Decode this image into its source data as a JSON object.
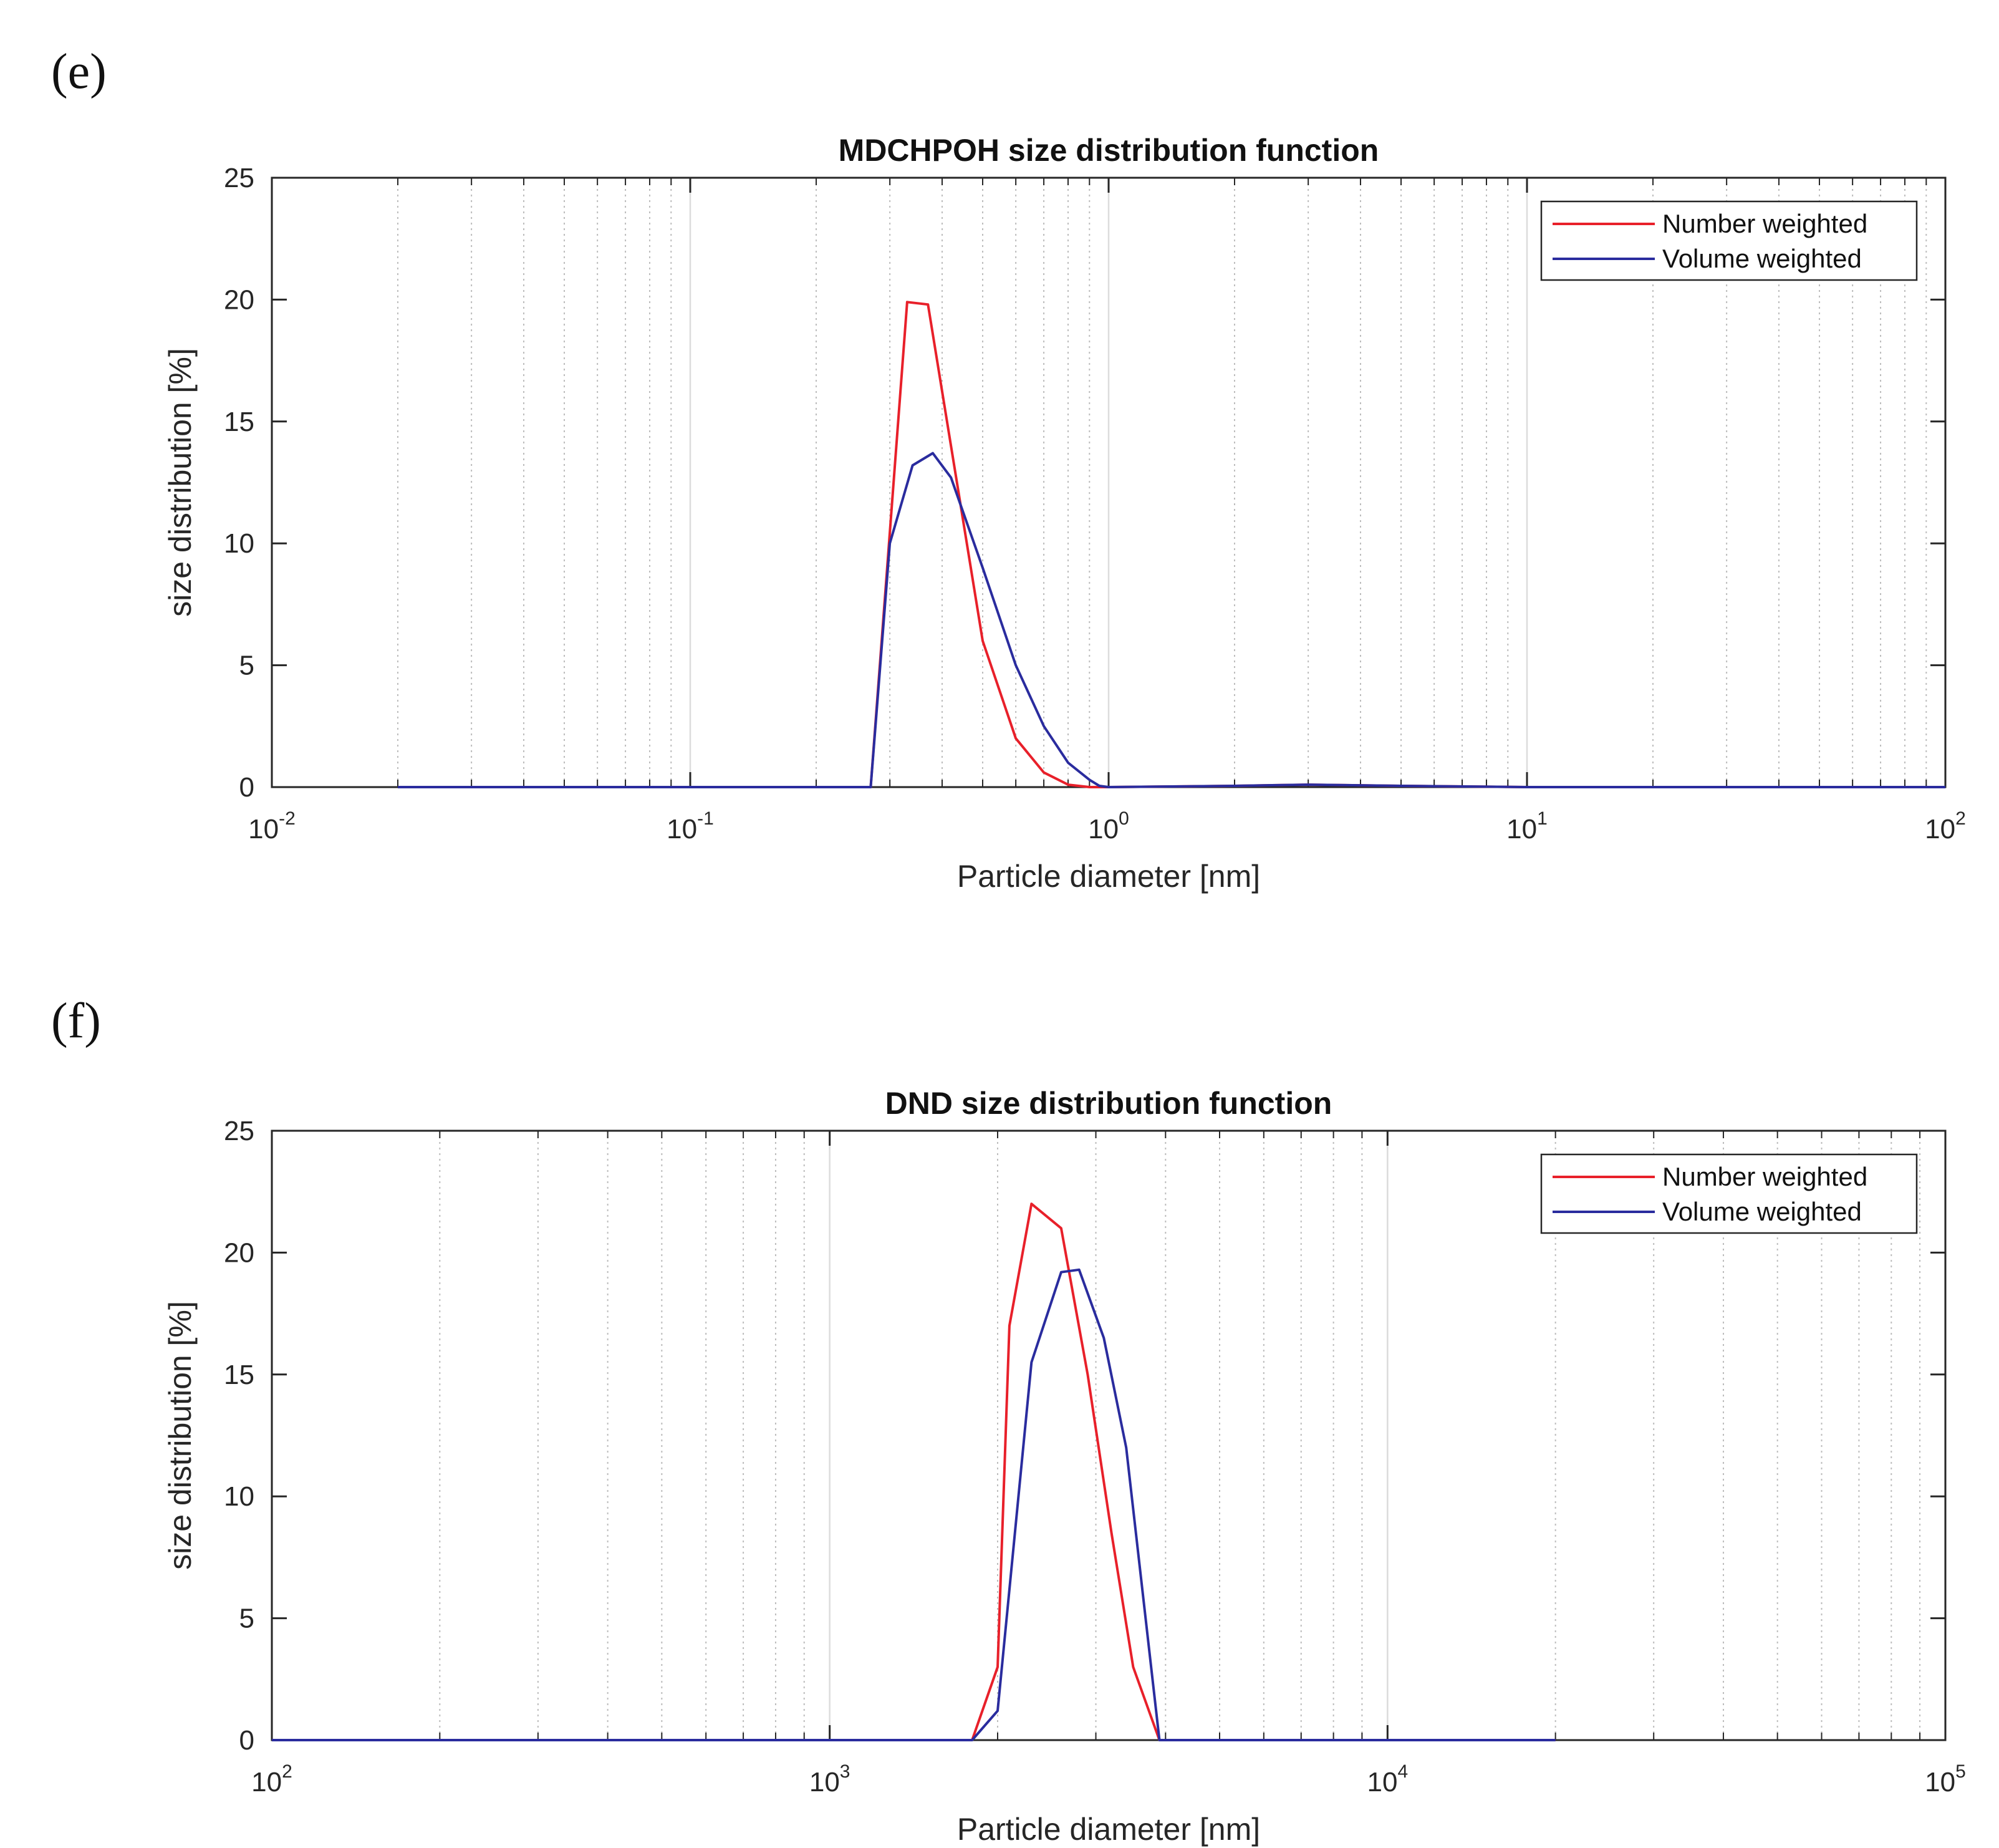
{
  "panels": [
    {
      "label": "(e)",
      "chart_data": {
        "type": "line",
        "title": "MDCHPOH size distribution function",
        "xlabel": "Particle diameter [nm]",
        "ylabel": "size distribution [%]",
        "xscale": "log",
        "xlim": [
          0.01,
          100
        ],
        "ylim": [
          0,
          25
        ],
        "xticks": [
          {
            "base": "10",
            "exp": "-2"
          },
          {
            "base": "10",
            "exp": "-1"
          },
          {
            "base": "10",
            "exp": "0"
          },
          {
            "base": "10",
            "exp": "1"
          },
          {
            "base": "10",
            "exp": "2"
          }
        ],
        "yticks": [
          "0",
          "5",
          "10",
          "15",
          "20",
          "25"
        ],
        "grid": true,
        "legend_position": "top-right",
        "series": [
          {
            "name": "Number weighted",
            "color": "#e8202a",
            "x": [
              0.02,
              0.27,
              0.33,
              0.37,
              0.42,
              0.5,
              0.6,
              0.7,
              0.8,
              0.9,
              1.0,
              2.0,
              3.0,
              5.0,
              10.0,
              100.0
            ],
            "y": [
              0,
              0,
              19.9,
              19.8,
              14.0,
              6.0,
              2.0,
              0.6,
              0.1,
              0,
              0,
              0.05,
              0.1,
              0.05,
              0,
              0
            ]
          },
          {
            "name": "Volume weighted",
            "color": "#2a2c9e",
            "x": [
              0.02,
              0.27,
              0.3,
              0.34,
              0.38,
              0.42,
              0.5,
              0.6,
              0.7,
              0.8,
              0.9,
              0.95,
              1.0,
              2.0,
              3.0,
              5.0,
              10.0,
              100.0
            ],
            "y": [
              0,
              0,
              10.0,
              13.2,
              13.7,
              12.7,
              9.0,
              5.0,
              2.5,
              1.0,
              0.3,
              0.05,
              0,
              0.05,
              0.1,
              0.05,
              0,
              0
            ]
          }
        ]
      }
    },
    {
      "label": "(f)",
      "chart_data": {
        "type": "line",
        "title": "DND size distribution function",
        "xlabel": "Particle diameter [nm]",
        "ylabel": "size distribution [%]",
        "xscale": "log",
        "xlim": [
          100,
          100000
        ],
        "ylim": [
          0,
          25
        ],
        "xticks": [
          {
            "base": "10",
            "exp": "2"
          },
          {
            "base": "10",
            "exp": "3"
          },
          {
            "base": "10",
            "exp": "4"
          },
          {
            "base": "10",
            "exp": "5"
          }
        ],
        "yticks": [
          "0",
          "5",
          "10",
          "15",
          "20",
          "25"
        ],
        "grid": true,
        "legend_position": "top-right",
        "series": [
          {
            "name": "Number weighted",
            "color": "#e8202a",
            "x": [
              100,
              1800,
              2000,
              2100,
              2300,
              2600,
              2900,
              3200,
              3500,
              3900,
              20000
            ],
            "y": [
              0,
              0,
              3.0,
              17.0,
              22.0,
              21.0,
              15.0,
              8.5,
              3.0,
              0,
              0
            ]
          },
          {
            "name": "Volume weighted",
            "color": "#2a2c9e",
            "x": [
              100,
              1800,
              2000,
              2300,
              2600,
              2800,
              3100,
              3400,
              3900,
              20000
            ],
            "y": [
              0,
              0,
              1.2,
              15.5,
              19.2,
              19.3,
              16.5,
              12.0,
              0,
              0
            ]
          }
        ]
      }
    }
  ]
}
